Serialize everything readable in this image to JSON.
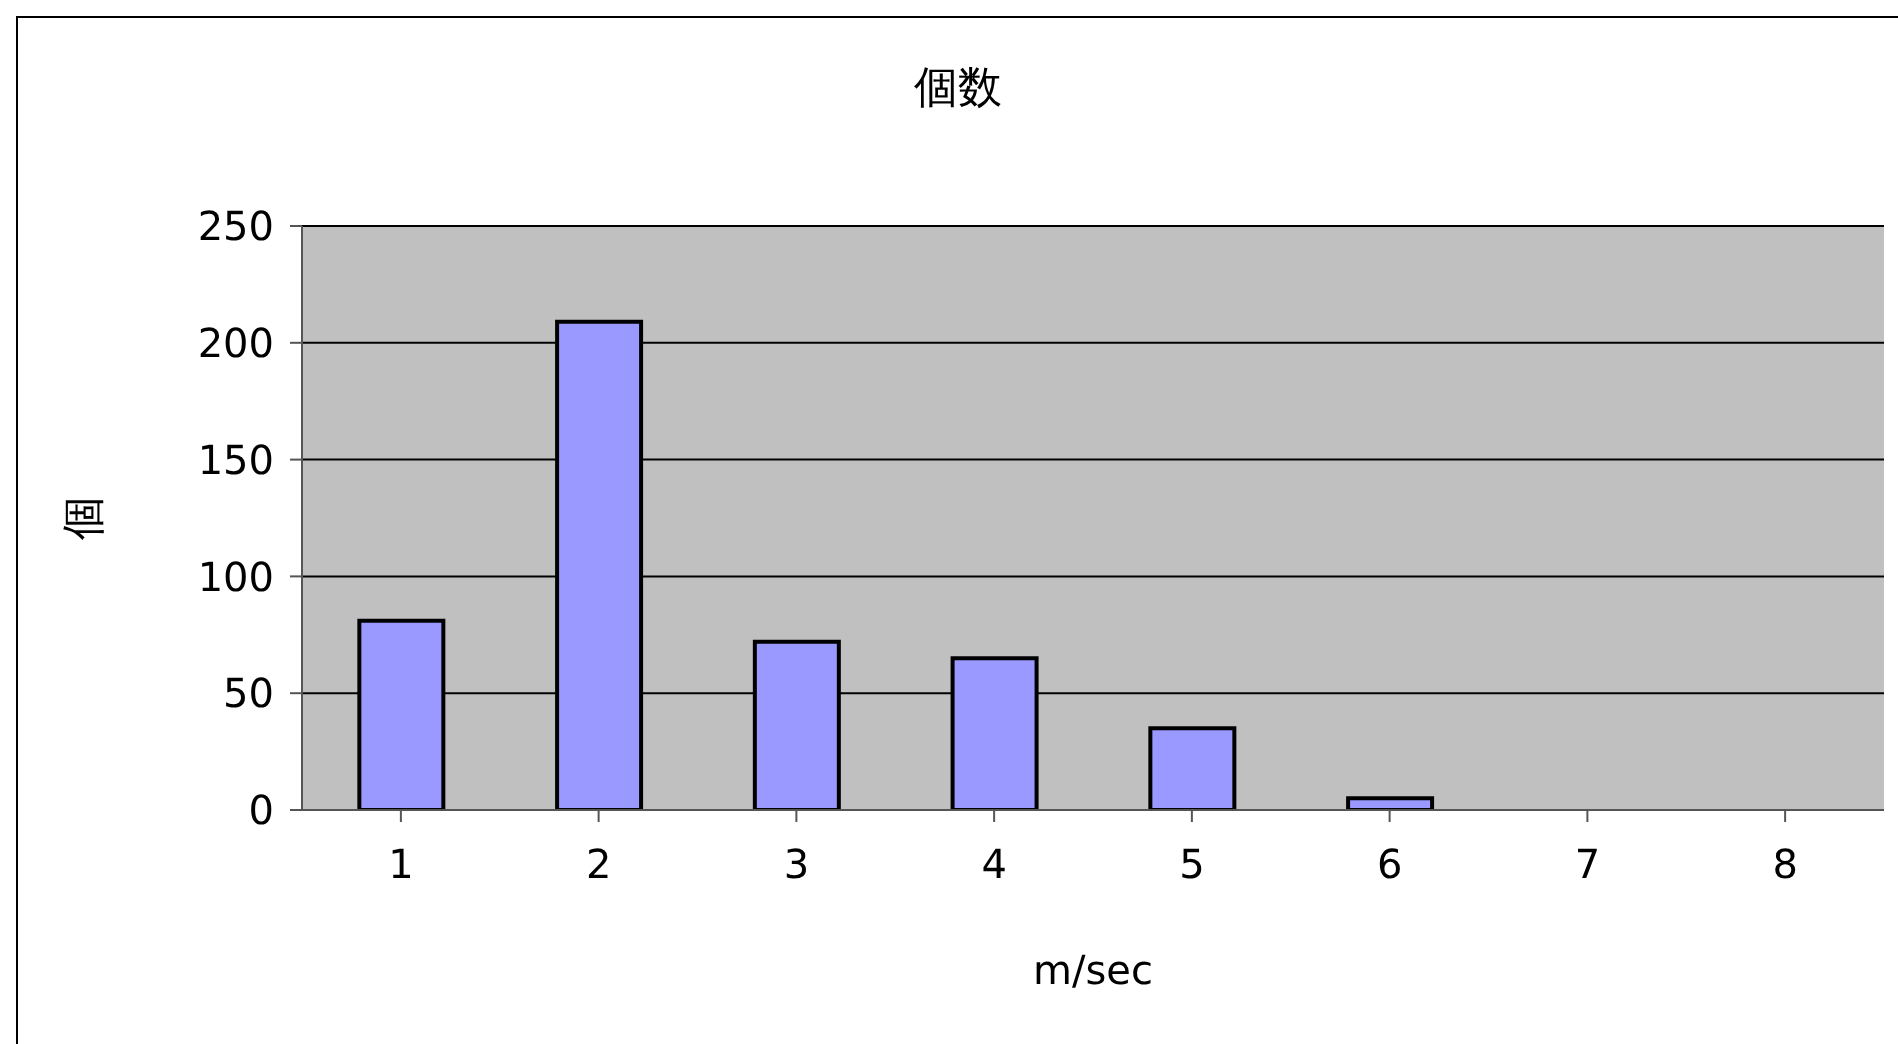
{
  "chart_data": {
    "type": "bar",
    "title": "個数",
    "xlabel": "m/sec",
    "ylabel": "個",
    "categories": [
      "1",
      "2",
      "3",
      "4",
      "5",
      "6",
      "7",
      "8"
    ],
    "values": [
      81,
      209,
      72,
      65,
      35,
      5,
      0,
      0
    ],
    "color": "#9999ff",
    "ylim": [
      0,
      250
    ],
    "yticks": [
      0,
      50,
      100,
      150,
      200,
      250
    ],
    "grid": "y",
    "legend": false
  }
}
